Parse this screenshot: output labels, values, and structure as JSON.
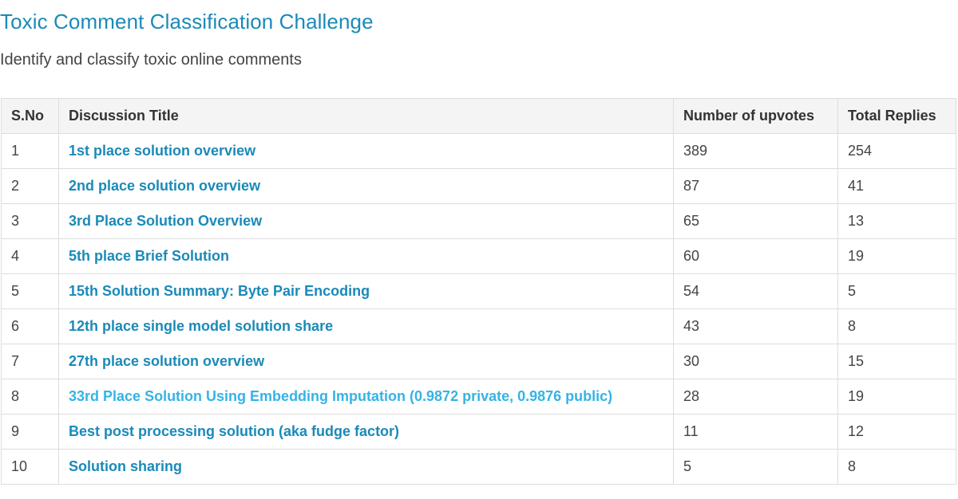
{
  "page": {
    "title": "Toxic Comment Classification Challenge",
    "subtitle": "Identify and classify toxic online comments"
  },
  "table": {
    "headers": [
      "S.No",
      "Discussion Title",
      "Number of upvotes",
      "Total Replies"
    ],
    "rows": [
      {
        "sno": "1",
        "title": "1st place solution overview",
        "upvotes": "389",
        "replies": "254"
      },
      {
        "sno": "2",
        "title": "2nd place solution overview",
        "upvotes": "87",
        "replies": "41"
      },
      {
        "sno": "3",
        "title": "3rd Place Solution Overview",
        "upvotes": "65",
        "replies": "13"
      },
      {
        "sno": "4",
        "title": "5th place Brief Solution",
        "upvotes": "60",
        "replies": "19"
      },
      {
        "sno": "5",
        "title": "15th Solution Summary: Byte Pair Encoding",
        "upvotes": "54",
        "replies": "5"
      },
      {
        "sno": "6",
        "title": "12th place single model solution share",
        "upvotes": "43",
        "replies": "8"
      },
      {
        "sno": "7",
        "title": "27th place solution overview",
        "upvotes": "30",
        "replies": "15"
      },
      {
        "sno": "8",
        "title": "33rd Place Solution Using Embedding Imputation (0.9872 private, 0.9876 public)",
        "upvotes": "28",
        "replies": "19"
      },
      {
        "sno": "9",
        "title": "Best post processing solution (aka fudge factor)",
        "upvotes": "11",
        "replies": "12"
      },
      {
        "sno": "10",
        "title": "Solution sharing",
        "upvotes": "5",
        "replies": "8"
      }
    ]
  },
  "colors": {
    "link": "#1a8ab8",
    "link_highlighted": "#35b3e6",
    "header_background": "#f4f4f4",
    "border": "#dddddd"
  }
}
